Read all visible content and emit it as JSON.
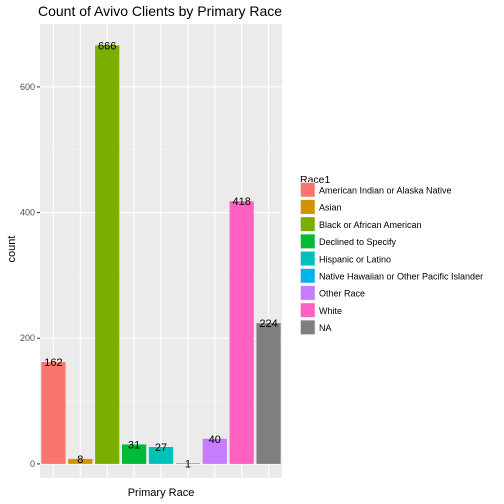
{
  "chart_data": {
    "type": "bar",
    "title": "Count of Avivo Clients by Primary Race",
    "xlabel": "Primary Race",
    "ylabel": "count",
    "ylim": [
      0,
      700
    ],
    "yticks": [
      0,
      200,
      400,
      600
    ],
    "grid": true,
    "legend": {
      "title": "Race1",
      "placement": "right"
    },
    "categories": [
      "American Indian or Alaska Native",
      "Asian",
      "Black or African American",
      "Declined to Specify",
      "Hispanic or Latino",
      "Native Hawaiian or Other Pacific Islander",
      "Other Race",
      "White",
      "NA"
    ],
    "values": [
      162,
      8,
      666,
      31,
      27,
      1,
      40,
      418,
      224
    ],
    "colors": [
      "#F8766D",
      "#D39200",
      "#7CAE00",
      "#00BA38",
      "#00C1B8",
      "#00B4F0",
      "#C77CFF",
      "#FF61C3",
      "#7F7F7F"
    ]
  }
}
